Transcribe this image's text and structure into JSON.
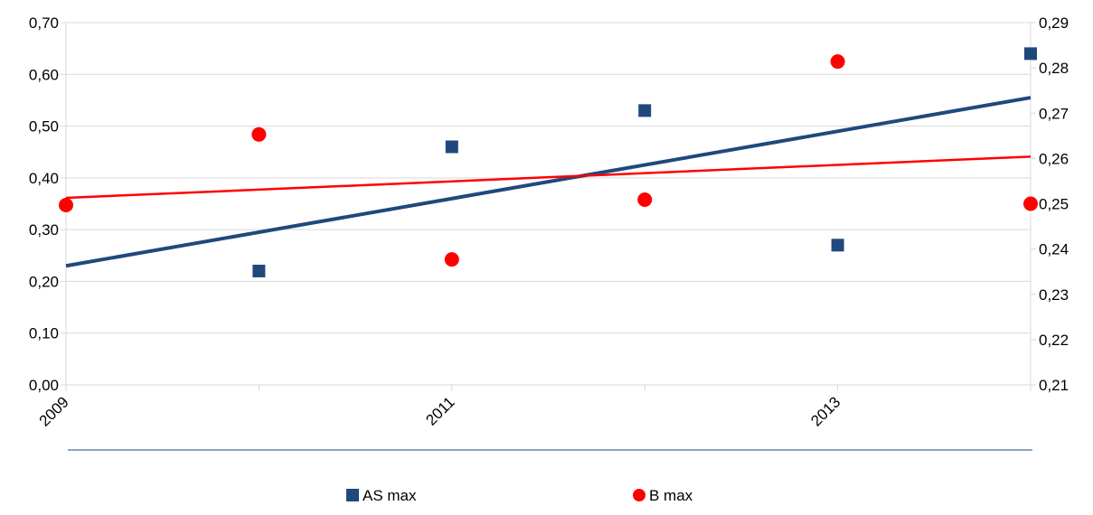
{
  "chart_data": {
    "type": "scatter",
    "x_ticks": [
      2009,
      2011,
      2013
    ],
    "x_tick_labels": [
      "2009",
      "2011",
      "2013"
    ],
    "xlim": [
      2009,
      2014
    ],
    "y_left": {
      "ylim": [
        0.0,
        0.7
      ],
      "ticks": [
        0.0,
        0.1,
        0.2,
        0.3,
        0.4,
        0.5,
        0.6,
        0.7
      ],
      "tick_labels": [
        "0,00",
        "0,10",
        "0,20",
        "0,30",
        "0,40",
        "0,50",
        "0,60",
        "0,70"
      ]
    },
    "y_right": {
      "ylim": [
        0.21,
        0.29
      ],
      "ticks": [
        0.21,
        0.22,
        0.23,
        0.24,
        0.25,
        0.26,
        0.27,
        0.28,
        0.29
      ],
      "tick_labels": [
        "0,21",
        "0,22",
        "0,23",
        "0,24",
        "0,25",
        "0,26",
        "0,27",
        "0,28",
        "0,29"
      ]
    },
    "grid": "horizontal",
    "legend_position": "bottom",
    "series": [
      {
        "name": "AS max",
        "axis": "left",
        "marker": "square",
        "color": "#1F497D",
        "x": [
          2010,
          2011,
          2012,
          2013,
          2014
        ],
        "values": [
          0.22,
          0.46,
          0.53,
          0.27,
          0.64
        ],
        "trendline": {
          "x": [
            2009,
            2014
          ],
          "values": [
            0.23,
            0.555
          ]
        }
      },
      {
        "name": "B max",
        "axis": "right",
        "marker": "circle",
        "color": "#FF0000",
        "x": [
          2009,
          2010,
          2011,
          2012,
          2013,
          2014
        ],
        "values": [
          0.2497,
          0.2653,
          0.2377,
          0.2509,
          0.2814,
          0.25
        ],
        "trendline": {
          "x": [
            2009,
            2014
          ],
          "values": [
            0.2513,
            0.2604
          ]
        }
      }
    ]
  }
}
